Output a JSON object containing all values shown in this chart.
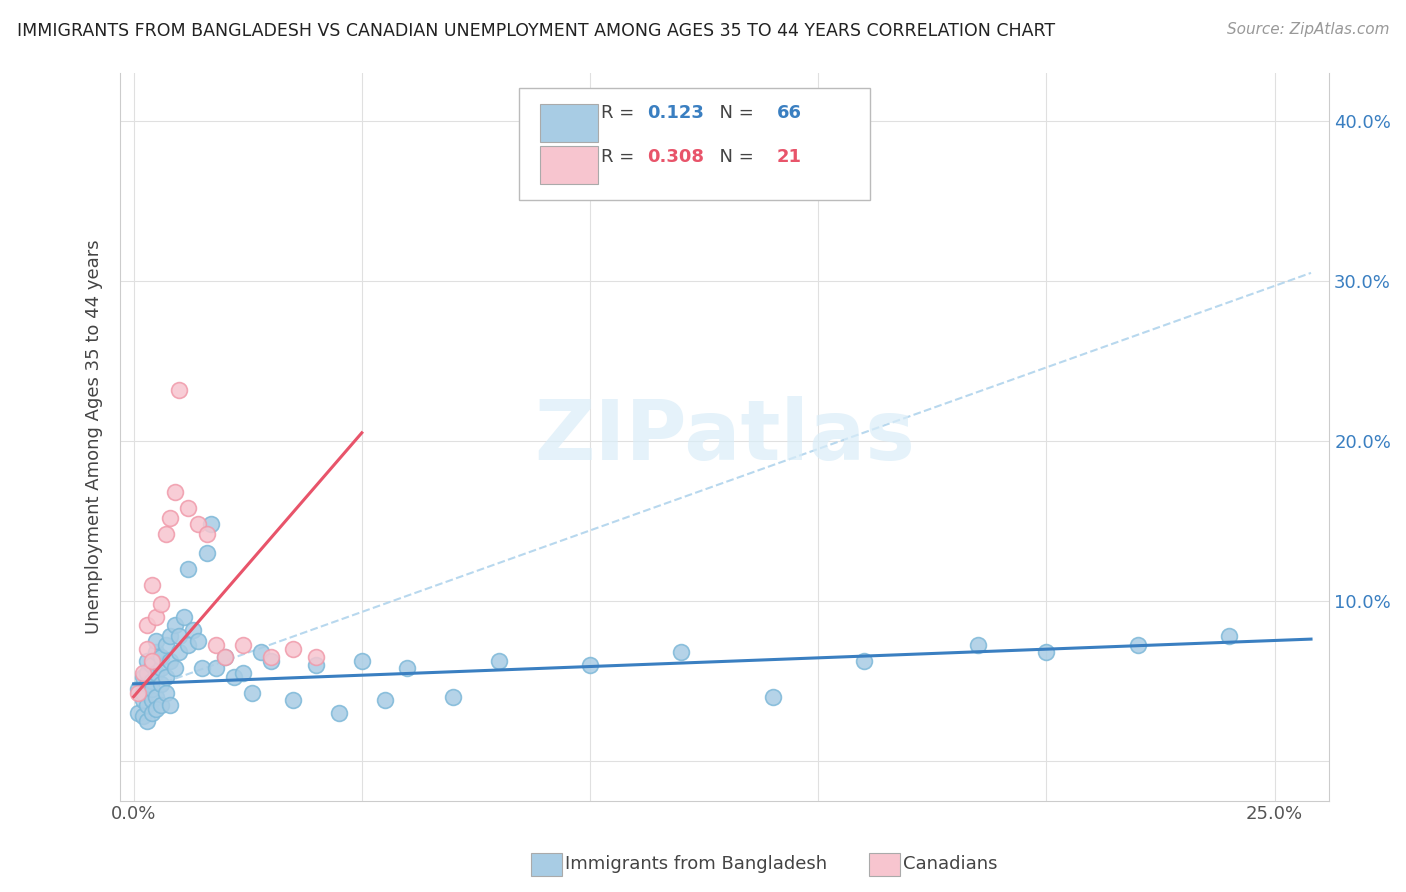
{
  "title": "IMMIGRANTS FROM BANGLADESH VS CANADIAN UNEMPLOYMENT AMONG AGES 35 TO 44 YEARS CORRELATION CHART",
  "source": "Source: ZipAtlas.com",
  "ylabel": "Unemployment Among Ages 35 to 44 years",
  "x_ticks": [
    0.0,
    0.05,
    0.1,
    0.15,
    0.2,
    0.25
  ],
  "y_ticks": [
    0.0,
    0.1,
    0.2,
    0.3,
    0.4
  ],
  "xlim": [
    -0.003,
    0.262
  ],
  "ylim": [
    -0.025,
    0.43
  ],
  "blue_color": "#a8cce4",
  "blue_edge_color": "#7db8d8",
  "pink_color": "#f7c5cf",
  "pink_edge_color": "#f09aaa",
  "blue_line_color": "#3a7fc1",
  "pink_line_color": "#e8546a",
  "dashed_line_color": "#b8d8ee",
  "watermark_color": "#daedf8",
  "watermark": "ZIPatlas",
  "r1": "0.123",
  "n1": "66",
  "r2": "0.308",
  "n2": "21",
  "blue_scatter_x": [
    0.001,
    0.001,
    0.002,
    0.002,
    0.002,
    0.002,
    0.003,
    0.003,
    0.003,
    0.003,
    0.003,
    0.004,
    0.004,
    0.004,
    0.004,
    0.004,
    0.005,
    0.005,
    0.005,
    0.005,
    0.005,
    0.006,
    0.006,
    0.006,
    0.006,
    0.007,
    0.007,
    0.007,
    0.008,
    0.008,
    0.008,
    0.009,
    0.009,
    0.01,
    0.01,
    0.011,
    0.012,
    0.012,
    0.013,
    0.014,
    0.015,
    0.016,
    0.017,
    0.018,
    0.02,
    0.022,
    0.024,
    0.026,
    0.028,
    0.03,
    0.035,
    0.04,
    0.045,
    0.05,
    0.055,
    0.06,
    0.07,
    0.08,
    0.1,
    0.12,
    0.14,
    0.16,
    0.185,
    0.2,
    0.22,
    0.24
  ],
  "blue_scatter_y": [
    0.03,
    0.045,
    0.038,
    0.052,
    0.028,
    0.042,
    0.048,
    0.055,
    0.035,
    0.062,
    0.025,
    0.05,
    0.06,
    0.038,
    0.045,
    0.03,
    0.055,
    0.068,
    0.04,
    0.075,
    0.032,
    0.048,
    0.058,
    0.035,
    0.065,
    0.042,
    0.072,
    0.052,
    0.078,
    0.062,
    0.035,
    0.058,
    0.085,
    0.068,
    0.078,
    0.09,
    0.072,
    0.12,
    0.082,
    0.075,
    0.058,
    0.13,
    0.148,
    0.058,
    0.065,
    0.052,
    0.055,
    0.042,
    0.068,
    0.062,
    0.038,
    0.06,
    0.03,
    0.062,
    0.038,
    0.058,
    0.04,
    0.062,
    0.06,
    0.068,
    0.04,
    0.062,
    0.072,
    0.068,
    0.072,
    0.078
  ],
  "pink_scatter_x": [
    0.001,
    0.002,
    0.003,
    0.003,
    0.004,
    0.004,
    0.005,
    0.006,
    0.007,
    0.008,
    0.009,
    0.01,
    0.012,
    0.014,
    0.016,
    0.018,
    0.02,
    0.024,
    0.03,
    0.035,
    0.04
  ],
  "pink_scatter_y": [
    0.042,
    0.055,
    0.07,
    0.085,
    0.062,
    0.11,
    0.09,
    0.098,
    0.142,
    0.152,
    0.168,
    0.232,
    0.158,
    0.148,
    0.142,
    0.072,
    0.065,
    0.072,
    0.065,
    0.07,
    0.065
  ],
  "blue_line_x0": 0.0,
  "blue_line_y0": 0.048,
  "blue_line_x1": 0.258,
  "blue_line_y1": 0.076,
  "pink_line_x0": 0.0,
  "pink_line_y0": 0.04,
  "pink_line_x1": 0.05,
  "pink_line_y1": 0.205,
  "dash_line_x0": 0.0,
  "dash_line_y0": 0.042,
  "dash_line_x1": 0.258,
  "dash_line_y1": 0.305
}
